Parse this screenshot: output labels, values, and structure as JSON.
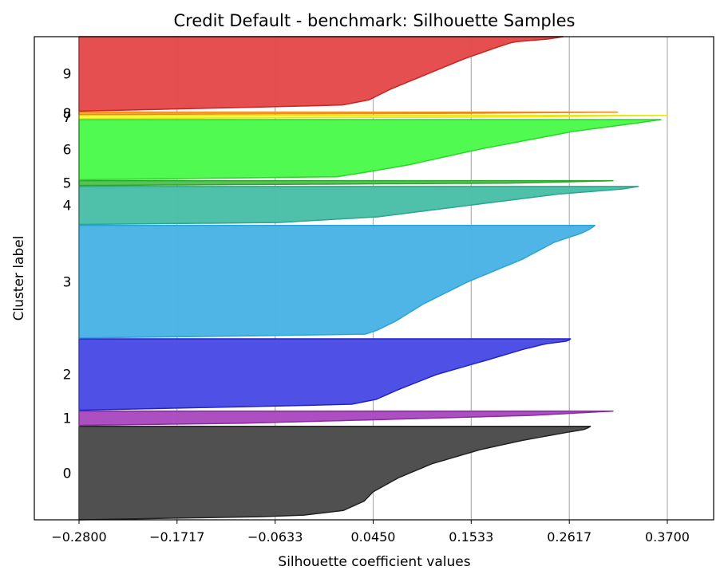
{
  "chart_data": {
    "type": "area",
    "title": "Credit Default - benchmark: Silhouette Samples",
    "xlabel": "Silhouette coefficient values",
    "ylabel": "Cluster label",
    "xlim": [
      -0.28,
      0.37
    ],
    "xticks": [
      "−0.2800",
      "−0.1717",
      "−0.0633",
      "0.0450",
      "0.1533",
      "0.2617",
      "0.3700"
    ],
    "xtick_values": [
      -0.28,
      -0.1717,
      -0.0633,
      0.045,
      0.1533,
      0.2617,
      0.37
    ],
    "grid": "vertical",
    "clusters": [
      {
        "label": "0",
        "color": "#4d4d4d",
        "edge": "#222222",
        "size": 1180,
        "profile": [
          [
            0,
            0.285
          ],
          [
            0.03,
            0.28
          ],
          [
            0.08,
            0.25
          ],
          [
            0.15,
            0.21
          ],
          [
            0.25,
            0.163
          ],
          [
            0.4,
            0.11
          ],
          [
            0.55,
            0.073
          ],
          [
            0.7,
            0.045
          ],
          [
            0.8,
            0.035
          ],
          [
            0.9,
            0.012
          ],
          [
            0.96,
            -0.04
          ],
          [
            1,
            -0.28
          ]
        ]
      },
      {
        "label": "1",
        "color": "#aa4bbf",
        "edge": "#8a2aa6",
        "size": 180,
        "profile": [
          [
            0,
            0.31
          ],
          [
            0.3,
            0.22
          ],
          [
            0.6,
            0.05
          ],
          [
            0.85,
            -0.1
          ],
          [
            1,
            -0.28
          ]
        ]
      },
      {
        "label": "2",
        "color": "#4b4ee6",
        "edge": "#2222cc",
        "size": 900,
        "profile": [
          [
            0,
            0.263
          ],
          [
            0.03,
            0.26
          ],
          [
            0.07,
            0.235
          ],
          [
            0.15,
            0.21
          ],
          [
            0.3,
            0.17
          ],
          [
            0.5,
            0.115
          ],
          [
            0.7,
            0.075
          ],
          [
            0.85,
            0.048
          ],
          [
            0.92,
            0.02
          ],
          [
            1,
            -0.28
          ]
        ]
      },
      {
        "label": "3",
        "color": "#4ab4e6",
        "edge": "#2aa4d6",
        "size": 1420,
        "profile": [
          [
            0,
            0.29
          ],
          [
            0.03,
            0.285
          ],
          [
            0.07,
            0.275
          ],
          [
            0.15,
            0.245
          ],
          [
            0.3,
            0.21
          ],
          [
            0.5,
            0.15
          ],
          [
            0.7,
            0.1
          ],
          [
            0.85,
            0.07
          ],
          [
            0.93,
            0.05
          ],
          [
            0.97,
            0.035
          ],
          [
            1,
            -0.28
          ]
        ]
      },
      {
        "label": "4",
        "color": "#4bbfa8",
        "edge": "#2aa68e",
        "size": 480,
        "profile": [
          [
            0,
            0.338
          ],
          [
            0.07,
            0.32
          ],
          [
            0.2,
            0.25
          ],
          [
            0.5,
            0.15
          ],
          [
            0.8,
            0.05
          ],
          [
            0.95,
            -0.06
          ],
          [
            1,
            -0.28
          ]
        ]
      },
      {
        "label": "5",
        "color": "#55c155",
        "edge": "#2aa62a",
        "size": 60,
        "profile": [
          [
            0,
            0.31
          ],
          [
            0.5,
            0.2
          ],
          [
            1,
            -0.28
          ]
        ]
      },
      {
        "label": "6",
        "color": "#4cfa4c",
        "edge": "#2ad62a",
        "size": 760,
        "profile": [
          [
            0,
            0.363
          ],
          [
            0.05,
            0.34
          ],
          [
            0.2,
            0.265
          ],
          [
            0.5,
            0.16
          ],
          [
            0.75,
            0.085
          ],
          [
            0.88,
            0.035
          ],
          [
            0.95,
            0.005
          ],
          [
            1,
            -0.28
          ]
        ]
      },
      {
        "label": "7",
        "color": "#f7f74a",
        "edge": "#e6e61a",
        "size": 40,
        "profile": [
          [
            0,
            0.37
          ],
          [
            0.5,
            0.2
          ],
          [
            1,
            -0.28
          ]
        ]
      },
      {
        "label": "8",
        "color": "#fba74a",
        "edge": "#eb8a1a",
        "size": 30,
        "profile": [
          [
            0,
            0.315
          ],
          [
            0.5,
            0.15
          ],
          [
            1,
            -0.28
          ]
        ]
      },
      {
        "label": "9",
        "color": "#e64b4b",
        "edge": "#cc2222",
        "size": 940,
        "profile": [
          [
            0,
            0.255
          ],
          [
            0.03,
            0.24
          ],
          [
            0.07,
            0.2
          ],
          [
            0.15,
            0.18
          ],
          [
            0.3,
            0.145
          ],
          [
            0.5,
            0.105
          ],
          [
            0.7,
            0.065
          ],
          [
            0.85,
            0.04
          ],
          [
            0.92,
            0.01
          ],
          [
            1,
            -0.28
          ]
        ]
      }
    ]
  }
}
